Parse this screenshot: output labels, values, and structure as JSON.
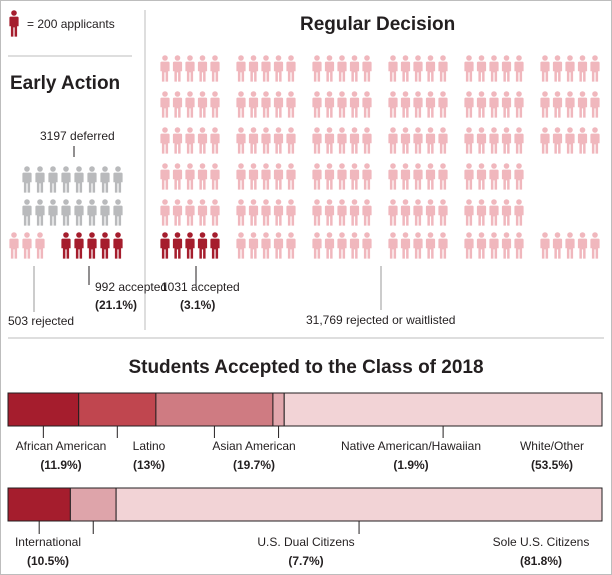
{
  "legend": {
    "label": "= 200 applicants",
    "icon": "person-icon",
    "color": "#a51d2d"
  },
  "colors": {
    "accepted": "#a51d2d",
    "rejected": "#f0b7bd",
    "deferred": "#b9babc",
    "bar_border": "#231f20",
    "divider": "#bdbdbd"
  },
  "early_action": {
    "title": "Early Action",
    "deferred": {
      "label": "3197 deferred",
      "count": 3197
    },
    "accepted": {
      "label": "992 accepted",
      "count": 992,
      "pct": "(21.1%)"
    },
    "rejected": {
      "label": "503 rejected",
      "count": 503
    }
  },
  "regular_decision": {
    "title": "Regular Decision",
    "accepted": {
      "label": "1031 accepted",
      "count": 1031,
      "pct": "(3.1%)"
    },
    "rejected": {
      "label": "31,769 rejected or waitlisted",
      "count": 31769
    }
  },
  "chart_data": [
    {
      "type": "bar",
      "orientation": "horizontal-stacked",
      "title": "Students Accepted to the Class of 2018",
      "series": [
        {
          "name": "African American",
          "value": 11.9,
          "pct_label": "(11.9%)",
          "color": "#a51d2d"
        },
        {
          "name": "Latino",
          "value": 13,
          "pct_label": "(13%)",
          "color": "#c0464f"
        },
        {
          "name": "Asian American",
          "value": 19.7,
          "pct_label": "(19.7%)",
          "color": "#cf7b82"
        },
        {
          "name": "Native American/Hawaiian",
          "value": 1.9,
          "pct_label": "(1.9%)",
          "color": "#e2a7ad"
        },
        {
          "name": "White/Other",
          "value": 53.5,
          "pct_label": "(53.5%)",
          "color": "#f2d3d6"
        }
      ],
      "xlim": [
        0,
        100
      ],
      "unit": "%"
    },
    {
      "type": "bar",
      "orientation": "horizontal-stacked",
      "series": [
        {
          "name": "International",
          "value": 10.5,
          "pct_label": "(10.5%)",
          "color": "#a51d2d"
        },
        {
          "name": "U.S. Dual Citizens",
          "value": 7.7,
          "pct_label": "(7.7%)",
          "color": "#dea4aa"
        },
        {
          "name": "Sole U.S. Citizens",
          "value": 81.8,
          "pct_label": "(81.8%)",
          "color": "#f2d3d6"
        }
      ],
      "xlim": [
        0,
        100
      ],
      "unit": "%"
    }
  ]
}
